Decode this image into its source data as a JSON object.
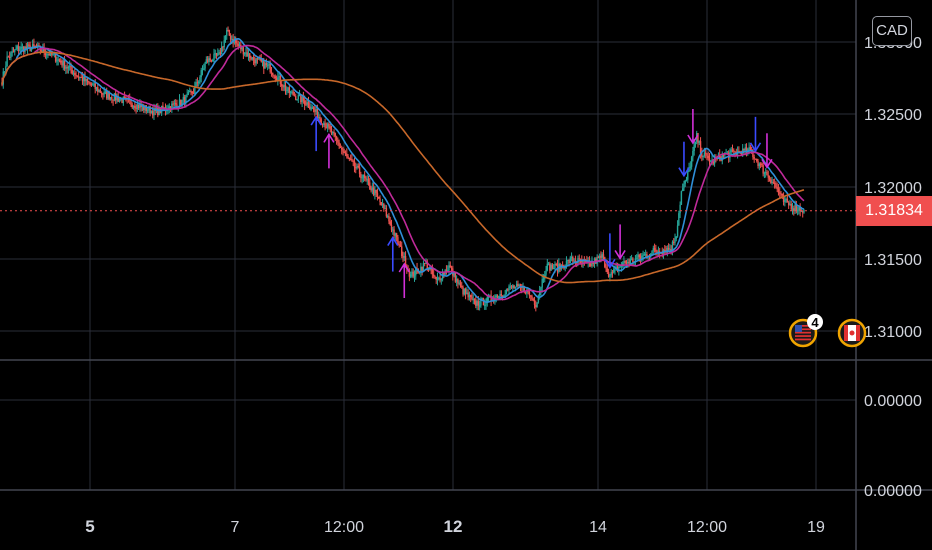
{
  "currency": "CAD",
  "last_price": "1.31834",
  "colors": {
    "background": "#000000",
    "grid": "#2a2e39",
    "candle_up": "#26a69a",
    "candle_down": "#ef5350",
    "ma_fast": "#2f8fd8",
    "ma_mid": "#c02a9a",
    "ma_slow": "#c8682a",
    "price_line": "#f04f4f",
    "arrow_blue": "#3a4bff",
    "arrow_magenta": "#d230d8"
  },
  "chart_data": {
    "type": "candlestick",
    "y_ticks_upper": [
      "1.33000",
      "1.32500",
      "1.32000",
      "1.31500",
      "1.31000"
    ],
    "y_ticks_lower": [
      "0.00000",
      "0.00000"
    ],
    "x_ticks": [
      {
        "label": "5",
        "bold": true
      },
      {
        "label": "7",
        "bold": false
      },
      {
        "label": "12:00",
        "bold": false
      },
      {
        "label": "12",
        "bold": true
      },
      {
        "label": "14",
        "bold": false
      },
      {
        "label": "12:00",
        "bold": false
      },
      {
        "label": "19",
        "bold": false
      }
    ],
    "ylim": [
      1.3075,
      1.3335
    ],
    "last_price": 1.31834,
    "anchors": [
      [
        0,
        1.3278
      ],
      [
        4,
        1.3294
      ],
      [
        12,
        1.3301
      ],
      [
        26,
        1.3302
      ],
      [
        40,
        1.3296
      ],
      [
        60,
        1.3281
      ],
      [
        80,
        1.3268
      ],
      [
        100,
        1.3262
      ],
      [
        120,
        1.3255
      ],
      [
        140,
        1.3262
      ],
      [
        150,
        1.327
      ],
      [
        160,
        1.3292
      ],
      [
        170,
        1.3296
      ],
      [
        176,
        1.3313
      ],
      [
        184,
        1.3304
      ],
      [
        196,
        1.3294
      ],
      [
        210,
        1.3287
      ],
      [
        224,
        1.327
      ],
      [
        240,
        1.3261
      ],
      [
        256,
        1.3243
      ],
      [
        270,
        1.3222
      ],
      [
        280,
        1.3211
      ],
      [
        292,
        1.3196
      ],
      [
        300,
        1.3183
      ],
      [
        310,
        1.316
      ],
      [
        320,
        1.3136
      ],
      [
        332,
        1.3145
      ],
      [
        340,
        1.3132
      ],
      [
        350,
        1.3143
      ],
      [
        360,
        1.3126
      ],
      [
        370,
        1.3116
      ],
      [
        380,
        1.3118
      ],
      [
        400,
        1.3128
      ],
      [
        410,
        1.3126
      ],
      [
        418,
        1.3116
      ],
      [
        426,
        1.3143
      ],
      [
        436,
        1.3142
      ],
      [
        446,
        1.3148
      ],
      [
        460,
        1.3144
      ],
      [
        470,
        1.315
      ],
      [
        476,
        1.3136
      ],
      [
        486,
        1.3145
      ],
      [
        496,
        1.3148
      ],
      [
        510,
        1.3154
      ],
      [
        524,
        1.3156
      ],
      [
        528,
        1.3167
      ],
      [
        532,
        1.3197
      ],
      [
        536,
        1.3206
      ],
      [
        544,
        1.3237
      ],
      [
        548,
        1.3225
      ],
      [
        556,
        1.3219
      ],
      [
        566,
        1.3224
      ],
      [
        576,
        1.3226
      ],
      [
        586,
        1.3227
      ],
      [
        596,
        1.3213
      ],
      [
        604,
        1.3204
      ],
      [
        612,
        1.319
      ],
      [
        620,
        1.3186
      ],
      [
        628,
        1.3184
      ]
    ],
    "series": [
      {
        "type": "ma",
        "length": 12,
        "color_key": "ma_fast"
      },
      {
        "type": "ma",
        "length": 26,
        "color_key": "ma_mid"
      },
      {
        "type": "ma",
        "length": 130,
        "color_key": "ma_slow"
      }
    ],
    "signals": [
      {
        "bar": 246,
        "dir": "up",
        "color_key": "arrow_blue"
      },
      {
        "bar": 256,
        "dir": "up",
        "color_key": "arrow_magenta"
      },
      {
        "bar": 306,
        "dir": "up",
        "color_key": "arrow_blue"
      },
      {
        "bar": 315,
        "dir": "up",
        "color_key": "arrow_magenta"
      },
      {
        "bar": 476,
        "dir": "down",
        "color_key": "arrow_blue"
      },
      {
        "bar": 484,
        "dir": "down",
        "color_key": "arrow_magenta"
      },
      {
        "bar": 534,
        "dir": "down",
        "color_key": "arrow_blue"
      },
      {
        "bar": 541,
        "dir": "down",
        "color_key": "arrow_magenta"
      },
      {
        "bar": 590,
        "dir": "down",
        "color_key": "arrow_blue"
      },
      {
        "bar": 599,
        "dir": "down",
        "color_key": "arrow_magenta"
      }
    ],
    "events": [
      {
        "name": "us-flag",
        "badge": "4"
      },
      {
        "name": "ca-flag",
        "badge": ""
      }
    ]
  }
}
